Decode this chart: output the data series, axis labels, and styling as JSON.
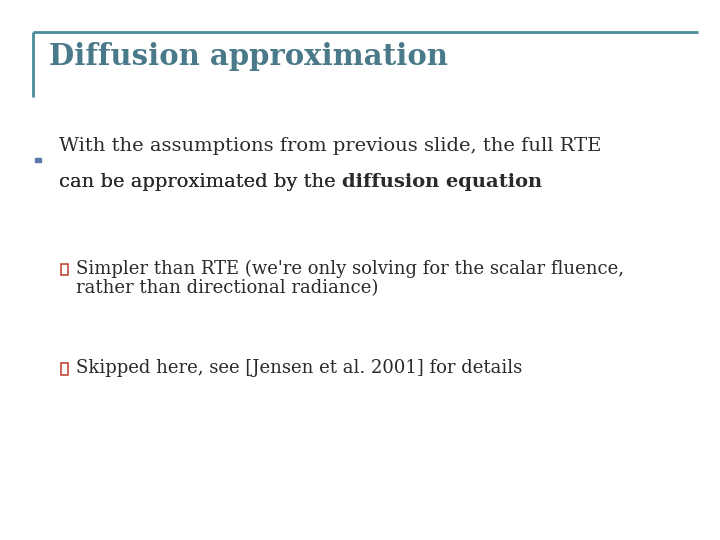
{
  "title": "Diffusion approximation",
  "title_color": "#4a7a8a",
  "title_fontsize": 21,
  "background_color": "#ffffff",
  "border_color": "#4a8a9a",
  "text_color": "#2a2a2a",
  "bullet_color": "#5a7aaa",
  "sub_bullet_color": "#c0392b",
  "bullet1_line1": "With the assumptions from previous slide, the full RTE",
  "bullet1_line2_normal": "can be approximated by the ",
  "bullet1_line2_bold": "diffusion equation",
  "sub1_line1": "Simpler than RTE (we're only solving for the scalar fluence,",
  "sub1_line2": "rather than directional radiance)",
  "sub2_line1": "Skipped here, see [Jensen et al. 2001] for details",
  "main_fontsize": 14,
  "sub_fontsize": 13
}
